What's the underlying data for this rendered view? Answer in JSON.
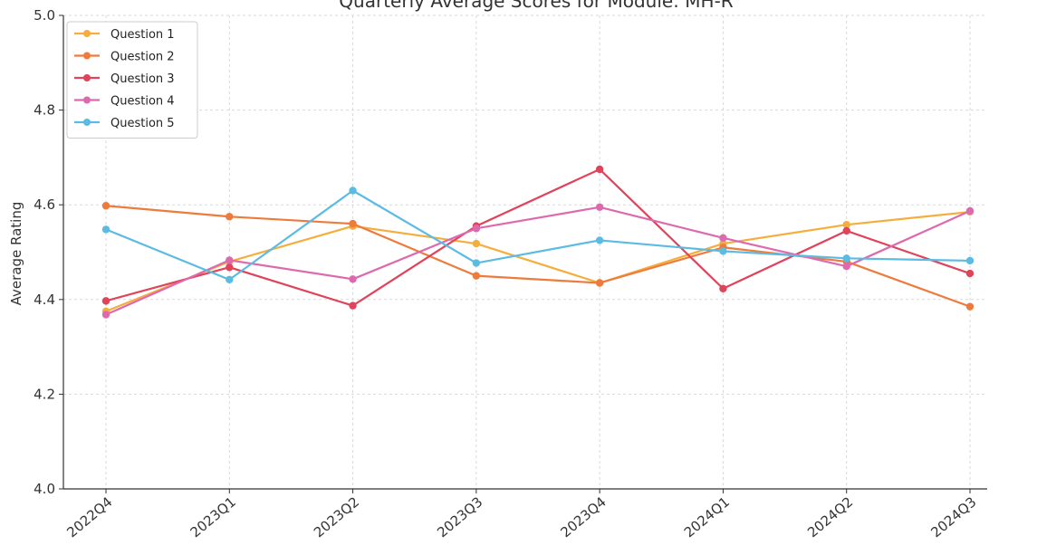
{
  "chart_data": {
    "type": "line",
    "title": "Quarterly Average Scores for Module: MH-R",
    "xlabel": "",
    "ylabel": "Average Rating",
    "categories": [
      "2022Q4",
      "2023Q1",
      "2023Q2",
      "2023Q3",
      "2023Q4",
      "2024Q1",
      "2024Q2",
      "2024Q3"
    ],
    "ylim": [
      4.0,
      5.0
    ],
    "yticks": [
      4.0,
      4.2,
      4.4,
      4.6,
      4.8,
      5.0
    ],
    "grid": true,
    "legend_position": "top-left",
    "series": [
      {
        "name": "Question 1",
        "color": "#f5ae3d",
        "values": [
          4.375,
          4.48,
          4.555,
          4.518,
          4.435,
          4.518,
          4.558,
          4.585
        ]
      },
      {
        "name": "Question 2",
        "color": "#ee7b3b",
        "values": [
          4.598,
          4.575,
          4.56,
          4.45,
          4.435,
          4.51,
          4.48,
          4.385
        ]
      },
      {
        "name": "Question 3",
        "color": "#e0435a",
        "values": [
          4.397,
          4.468,
          4.387,
          4.555,
          4.675,
          4.423,
          4.545,
          4.455
        ]
      },
      {
        "name": "Question 4",
        "color": "#dd6aaf",
        "values": [
          4.368,
          4.483,
          4.443,
          4.55,
          4.595,
          4.53,
          4.47,
          4.587
        ]
      },
      {
        "name": "Question 5",
        "color": "#5bbbe3",
        "values": [
          4.548,
          4.442,
          4.63,
          4.477,
          4.525,
          4.502,
          4.487,
          4.482
        ]
      }
    ]
  }
}
